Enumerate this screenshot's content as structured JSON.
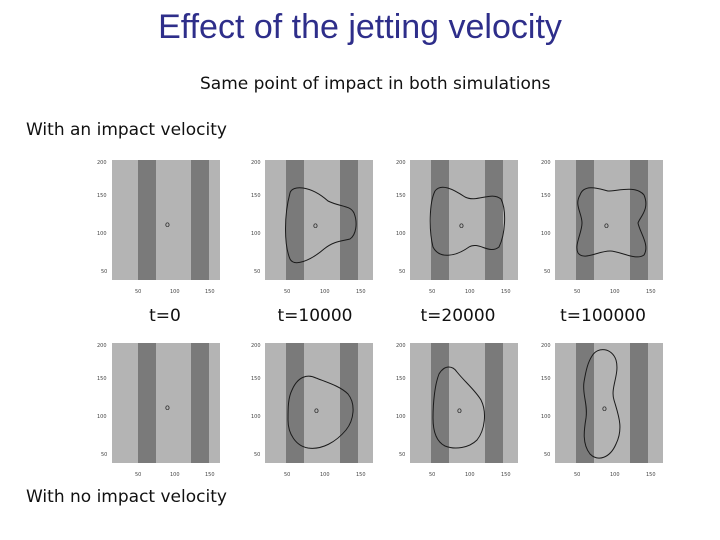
{
  "slide": {
    "title": "Effect of the jetting velocity",
    "subtitle": "Same point of impact in both simulations",
    "row1_label": "With an impact velocity",
    "row2_label": "With no impact velocity",
    "times": [
      "t=0",
      "t=10000",
      "t=20000",
      "t=100000"
    ]
  },
  "panels": {
    "row1": [
      {
        "yticks": [
          "200",
          "150",
          "100",
          "50"
        ],
        "xticks": [
          "50",
          "100",
          "150"
        ]
      },
      {
        "yticks": [
          "200",
          "150",
          "100",
          "50"
        ],
        "xticks": [
          "50",
          "100",
          "150"
        ]
      },
      {
        "yticks": [
          "200",
          "150",
          "100",
          "50"
        ],
        "xticks": [
          "50",
          "100",
          "150"
        ]
      },
      {
        "yticks": [
          "200",
          "150",
          "100",
          "50"
        ],
        "xticks": [
          "50",
          "100",
          "150"
        ]
      }
    ],
    "row2": [
      {
        "yticks": [
          "200",
          "150",
          "100",
          "50"
        ],
        "xticks": [
          "50",
          "100",
          "150"
        ]
      },
      {
        "yticks": [
          "200",
          "150",
          "100",
          "50"
        ],
        "xticks": [
          "50",
          "100",
          "150"
        ]
      },
      {
        "yticks": [
          "200",
          "150",
          "100",
          "50"
        ],
        "xticks": [
          "50",
          "100",
          "150"
        ]
      },
      {
        "yticks": [
          "200",
          "150",
          "100",
          "50"
        ],
        "xticks": [
          "50",
          "100",
          "150"
        ]
      }
    ]
  },
  "colors": {
    "title": "#2e2e8a",
    "plot_bg": "#b4b4b4",
    "stripe": "#7a7a7a",
    "contour": "#1a1a1a"
  }
}
